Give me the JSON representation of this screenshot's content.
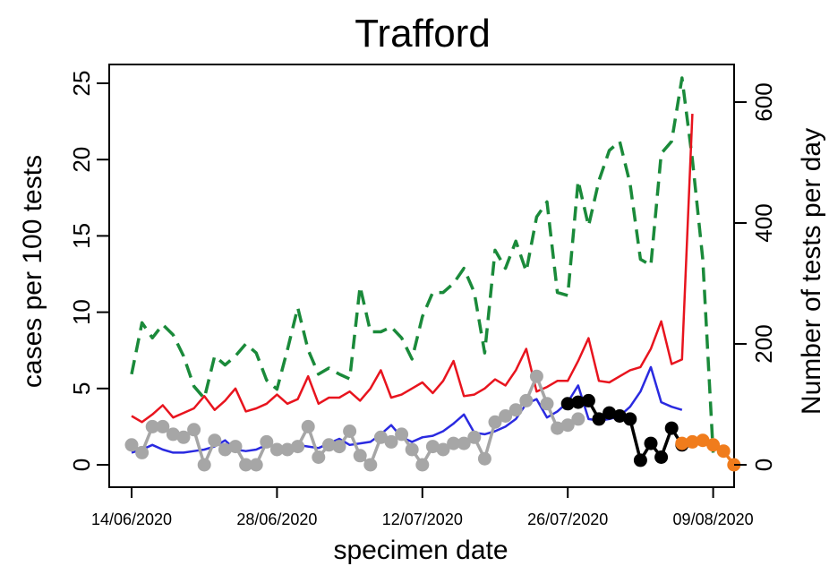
{
  "chart_data": {
    "type": "line",
    "title": "Trafford",
    "xlabel": "specimen date",
    "ylabel": "cases per 100 tests",
    "y2label": "Number of tests per day",
    "x_start": "14/06/2020",
    "x_tick_labels": [
      "14/06/2020",
      "28/06/2020",
      "12/07/2020",
      "26/07/2020",
      "09/08/2020"
    ],
    "ylim": [
      0,
      26
    ],
    "y_ticks": [
      0,
      5,
      10,
      15,
      20,
      25
    ],
    "y2lim": [
      0,
      650
    ],
    "y2_ticks": [
      0,
      200,
      400,
      600
    ],
    "grid": false,
    "series": [
      {
        "name": "",
        "axis": "right",
        "style": "dashed",
        "color": "#1a8a3a",
        "values": [
          150,
          235,
          210,
          232,
          215,
          180,
          130,
          110,
          180,
          165,
          180,
          200,
          185,
          140,
          125,
          190,
          260,
          190,
          150,
          160,
          150,
          142,
          295,
          220,
          220,
          228,
          210,
          175,
          245,
          285,
          285,
          300,
          325,
          285,
          185,
          355,
          325,
          370,
          320,
          410,
          435,
          285,
          280,
          470,
          395,
          470,
          520,
          535,
          465,
          340,
          330,
          515,
          535,
          640,
          505,
          340,
          20
        ]
      },
      {
        "name": "",
        "axis": "left",
        "style": "solid",
        "color": "#e8141e",
        "values": [
          3.2,
          2.8,
          3.3,
          3.9,
          3.1,
          3.4,
          3.7,
          4.5,
          3.6,
          4.2,
          5.0,
          3.5,
          3.7,
          4.0,
          4.6,
          4.0,
          4.3,
          5.8,
          4.0,
          4.4,
          4.4,
          4.8,
          4.2,
          5.0,
          6.2,
          4.4,
          4.6,
          5.0,
          5.4,
          4.7,
          5.5,
          6.8,
          4.5,
          4.6,
          5.0,
          5.6,
          5.2,
          6.2,
          7.6,
          4.8,
          5.1,
          5.5,
          5.5,
          6.8,
          8.3,
          5.5,
          5.4,
          5.8,
          6.2,
          6.4,
          7.6,
          9.4,
          6.6,
          6.9,
          23.0
        ]
      },
      {
        "name": "",
        "axis": "left",
        "style": "solid",
        "color": "#2a2ae0",
        "values": [
          0.8,
          1.0,
          1.3,
          1.0,
          0.8,
          0.8,
          0.9,
          1.0,
          1.2,
          1.6,
          1.0,
          0.9,
          1.0,
          1.3,
          1.2,
          1.0,
          1.3,
          1.2,
          1.1,
          1.4,
          1.7,
          1.3,
          1.4,
          1.5,
          2.0,
          2.6,
          1.8,
          1.5,
          1.8,
          1.9,
          2.2,
          2.7,
          3.3,
          2.1,
          2.0,
          2.2,
          2.5,
          3.0,
          4.0,
          4.3,
          3.1,
          3.5,
          4.1,
          5.2,
          3.0,
          2.9,
          3.0,
          3.2,
          3.8,
          4.8,
          6.4,
          4.1,
          3.8,
          3.6
        ]
      },
      {
        "name": "",
        "axis": "left",
        "style": "points",
        "color": "#a6a6a6",
        "values": [
          1.3,
          0.8,
          2.5,
          2.5,
          2.0,
          1.8,
          2.3,
          0,
          1.6,
          1.0,
          1.2,
          0,
          0,
          1.5,
          1.0,
          1.0,
          1.2,
          2.5,
          0.5,
          1.3,
          1.2,
          2.2,
          0.6,
          0,
          1.8,
          1.5,
          2.0,
          1.0,
          0,
          1.2,
          1.0,
          1.4,
          1.4,
          1.8,
          0.4,
          2.8,
          3.2,
          3.6,
          4.2,
          5.8,
          4.0,
          2.4,
          2.6,
          3.0
        ],
        "start_index": 0
      },
      {
        "name": "",
        "axis": "left",
        "style": "points",
        "color": "#000000",
        "values": [
          4.0,
          4.1,
          4.2,
          3.0,
          3.4,
          3.2,
          3.0,
          0.3,
          1.4,
          0.5,
          2.4,
          1.3
        ],
        "start_index": 42
      },
      {
        "name": "",
        "axis": "left",
        "style": "points",
        "color": "#f07c1c",
        "values": [
          1.4,
          1.5,
          1.6,
          1.3,
          0.9,
          0
        ],
        "start_index": 53
      }
    ]
  }
}
